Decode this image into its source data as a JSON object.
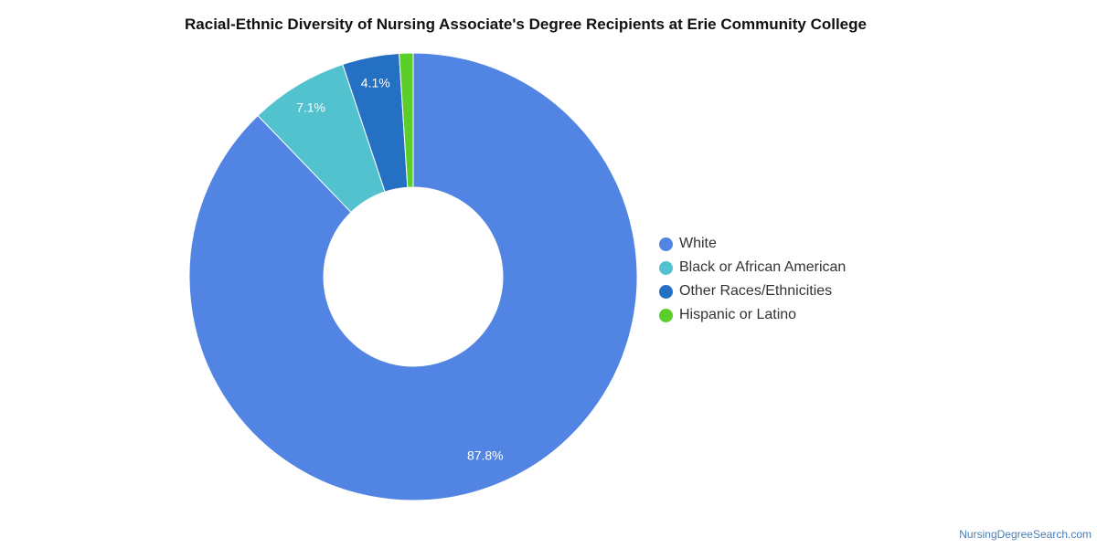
{
  "chart_data": {
    "type": "pie",
    "title": "Racial-Ethnic Diversity of Nursing Associate's Degree Recipients at Erie Community College",
    "slices": [
      {
        "label": "White",
        "value": 87.8,
        "display": "87.8%",
        "color": "#5285e3"
      },
      {
        "label": "Black or African American",
        "value": 7.1,
        "display": "7.1%",
        "color": "#52c2ce"
      },
      {
        "label": "Other Races/Ethnicities",
        "value": 4.1,
        "display": "4.1%",
        "color": "#2470c2"
      },
      {
        "label": "Hispanic or Latino",
        "value": 1.0,
        "display": "",
        "color": "#5bce29"
      }
    ],
    "legend_position": "right",
    "donut": true
  },
  "footer": {
    "credit": "NursingDegreeSearch.com"
  }
}
